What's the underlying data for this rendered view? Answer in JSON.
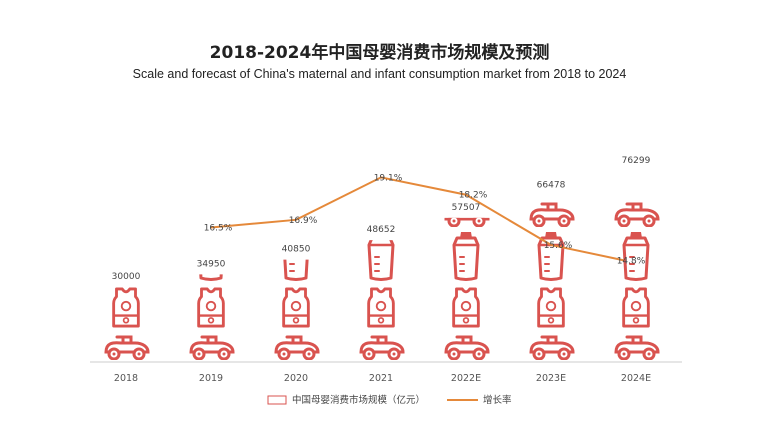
{
  "title": "2018-2024年中国母婴消费市场规模及预测",
  "subtitle": "Scale and forecast of China's maternal and infant consumption market from 2018 to 2024",
  "colors": {
    "icon": "#d9534f",
    "line": "#e5893a",
    "axis": "#cccccc"
  },
  "legend": {
    "bar_label": "中国母婴消费市场规模（亿元）",
    "line_label": "增长率",
    "placement": "bottom"
  },
  "chart_data": {
    "type": "bar",
    "categories": [
      "2018",
      "2019",
      "2020",
      "2021",
      "2022E",
      "2023E",
      "2024E"
    ],
    "series": [
      {
        "name": "中国母婴消费市场规模（亿元）",
        "type": "bar",
        "values": [
          30000,
          34950,
          40850,
          48652,
          57507,
          66478,
          76299
        ]
      },
      {
        "name": "增长率",
        "type": "line",
        "values": [
          null,
          16.5,
          16.9,
          19.1,
          18.2,
          15.6,
          14.8
        ],
        "labels": [
          null,
          "16.5%",
          "16.9%",
          "19.1%",
          "18.2%",
          "15.6%",
          "14.8%"
        ]
      }
    ],
    "ylim": [
      0,
      80000
    ],
    "y2lim": [
      10,
      20
    ],
    "grid": false,
    "legend_placement": "bottom"
  }
}
